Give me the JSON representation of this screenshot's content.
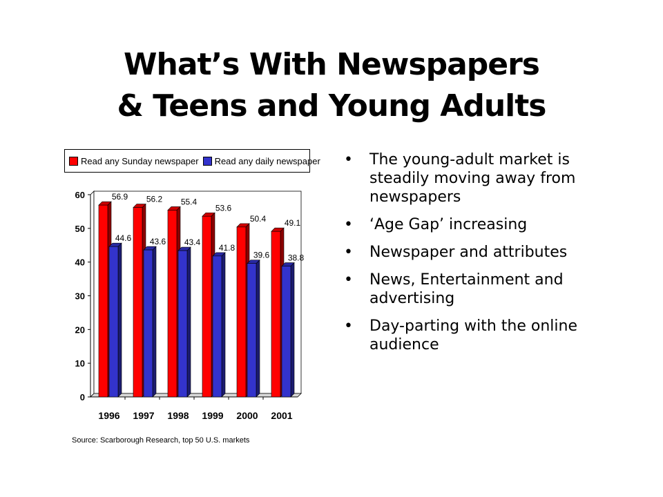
{
  "slide": {
    "title_line1": "What’s With Newspapers",
    "title_line2": "& Teens and Young Adults",
    "source": "Source: Scarborough Research, top 50 U.S. markets",
    "bullets": [
      "The young-adult market is steadily moving away from newspapers",
      "‘Age Gap’ increasing",
      "Newspaper and attributes",
      "News, Entertainment and advertising",
      "Day-parting with the online audience"
    ]
  },
  "colors": {
    "sunday": "#ff0000",
    "daily": "#3333cc"
  },
  "chart_data": {
    "type": "bar",
    "categories": [
      "1996",
      "1997",
      "1998",
      "1999",
      "2000",
      "2001"
    ],
    "series": [
      {
        "name": "Read any Sunday newspaper",
        "values": [
          56.9,
          56.2,
          55.4,
          53.6,
          50.4,
          49.1
        ]
      },
      {
        "name": "Read any daily newspaper",
        "values": [
          44.6,
          43.6,
          43.4,
          41.8,
          39.6,
          38.8
        ]
      }
    ],
    "value_labels": {
      "sunday": [
        "56.9",
        "56.2",
        "55.4",
        "53.6",
        "50.4",
        "49.1"
      ],
      "daily": [
        "44.6",
        "43.6",
        "43.4",
        "41.8",
        "39.6",
        "38.8"
      ]
    },
    "ylim": [
      0,
      60
    ],
    "yticks": [
      "0",
      "10",
      "20",
      "30",
      "40",
      "50",
      "60"
    ],
    "legend": "top",
    "grid": false,
    "style": "3d"
  }
}
